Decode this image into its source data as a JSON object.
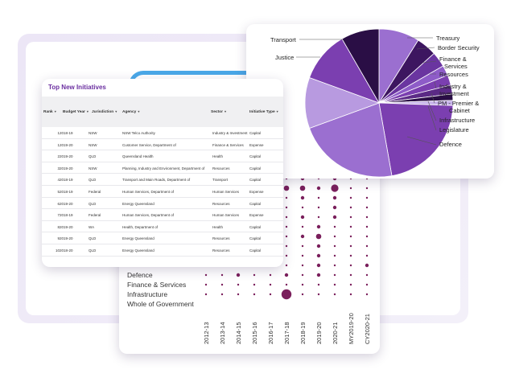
{
  "dot_matrix": {
    "row_labels": [
      "Defence",
      "Finance & Services",
      "Infrastructure",
      "Whole of Government"
    ],
    "col_labels": [
      "2012-13",
      "2013-14",
      "2014-15",
      "2015-16",
      "2016-17",
      "2017-18",
      "2018-19",
      "2019-20",
      "2020-21",
      "MY2019-20",
      "CY2020-21"
    ],
    "colors": {
      "dot": "#7a1f5c"
    }
  },
  "pie": {
    "labels": [
      "Transport",
      "Justice",
      "Treasury",
      "Border Security",
      "Finance & Services",
      "Resources",
      "Industry & Investment",
      "PM - Premier & Cabinet",
      "Infrastructure",
      "Legislature",
      "Defence"
    ],
    "partial_labels": [
      "ation",
      "ces"
    ],
    "colors": [
      "#5b2a86",
      "#7b3fb0",
      "#9b6fd0",
      "#b89ae0",
      "#3d1660",
      "#6a35a0",
      "#2a0e45"
    ]
  },
  "table": {
    "title": "Top New Initiatives",
    "headers": [
      "Rank",
      "Budget Year",
      "Jurisdiction",
      "Agency",
      "Sector",
      "Initiative Type"
    ],
    "rows": [
      [
        "1",
        "2018-19",
        "NSW",
        "NSW Telco Authority",
        "Industry & Investment",
        "Capital"
      ],
      [
        "1",
        "2019-20",
        "NSW",
        "Customer Service, Department of",
        "Finance & Services",
        "Expense"
      ],
      [
        "2",
        "2019-20",
        "QLD",
        "Queensland Health",
        "Health",
        "Capital"
      ],
      [
        "3",
        "2019-20",
        "NSW",
        "Planning, Industry and Environment, Department of",
        "Resources",
        "Capital"
      ],
      [
        "4",
        "2018-19",
        "QLD",
        "Transport and Main Roads, Department of",
        "Transport",
        "Capital"
      ],
      [
        "5",
        "2018-19",
        "Federal",
        "Human Services, Department of",
        "Human Services",
        "Expense"
      ],
      [
        "6",
        "2019-20",
        "QLD",
        "Energy Queensland",
        "Resources",
        "Capital"
      ],
      [
        "7",
        "2018-19",
        "Federal",
        "Human Services, Department of",
        "Human Services",
        "Expense"
      ],
      [
        "8",
        "2019-20",
        "WA",
        "Health, Department of",
        "Health",
        "Capital"
      ],
      [
        "9",
        "2019-20",
        "QLD",
        "Energy Queensland",
        "Resources",
        "Capital"
      ],
      [
        "10",
        "2018-20",
        "QLD",
        "Energy Queensland",
        "Resources",
        "Capital"
      ]
    ]
  }
}
